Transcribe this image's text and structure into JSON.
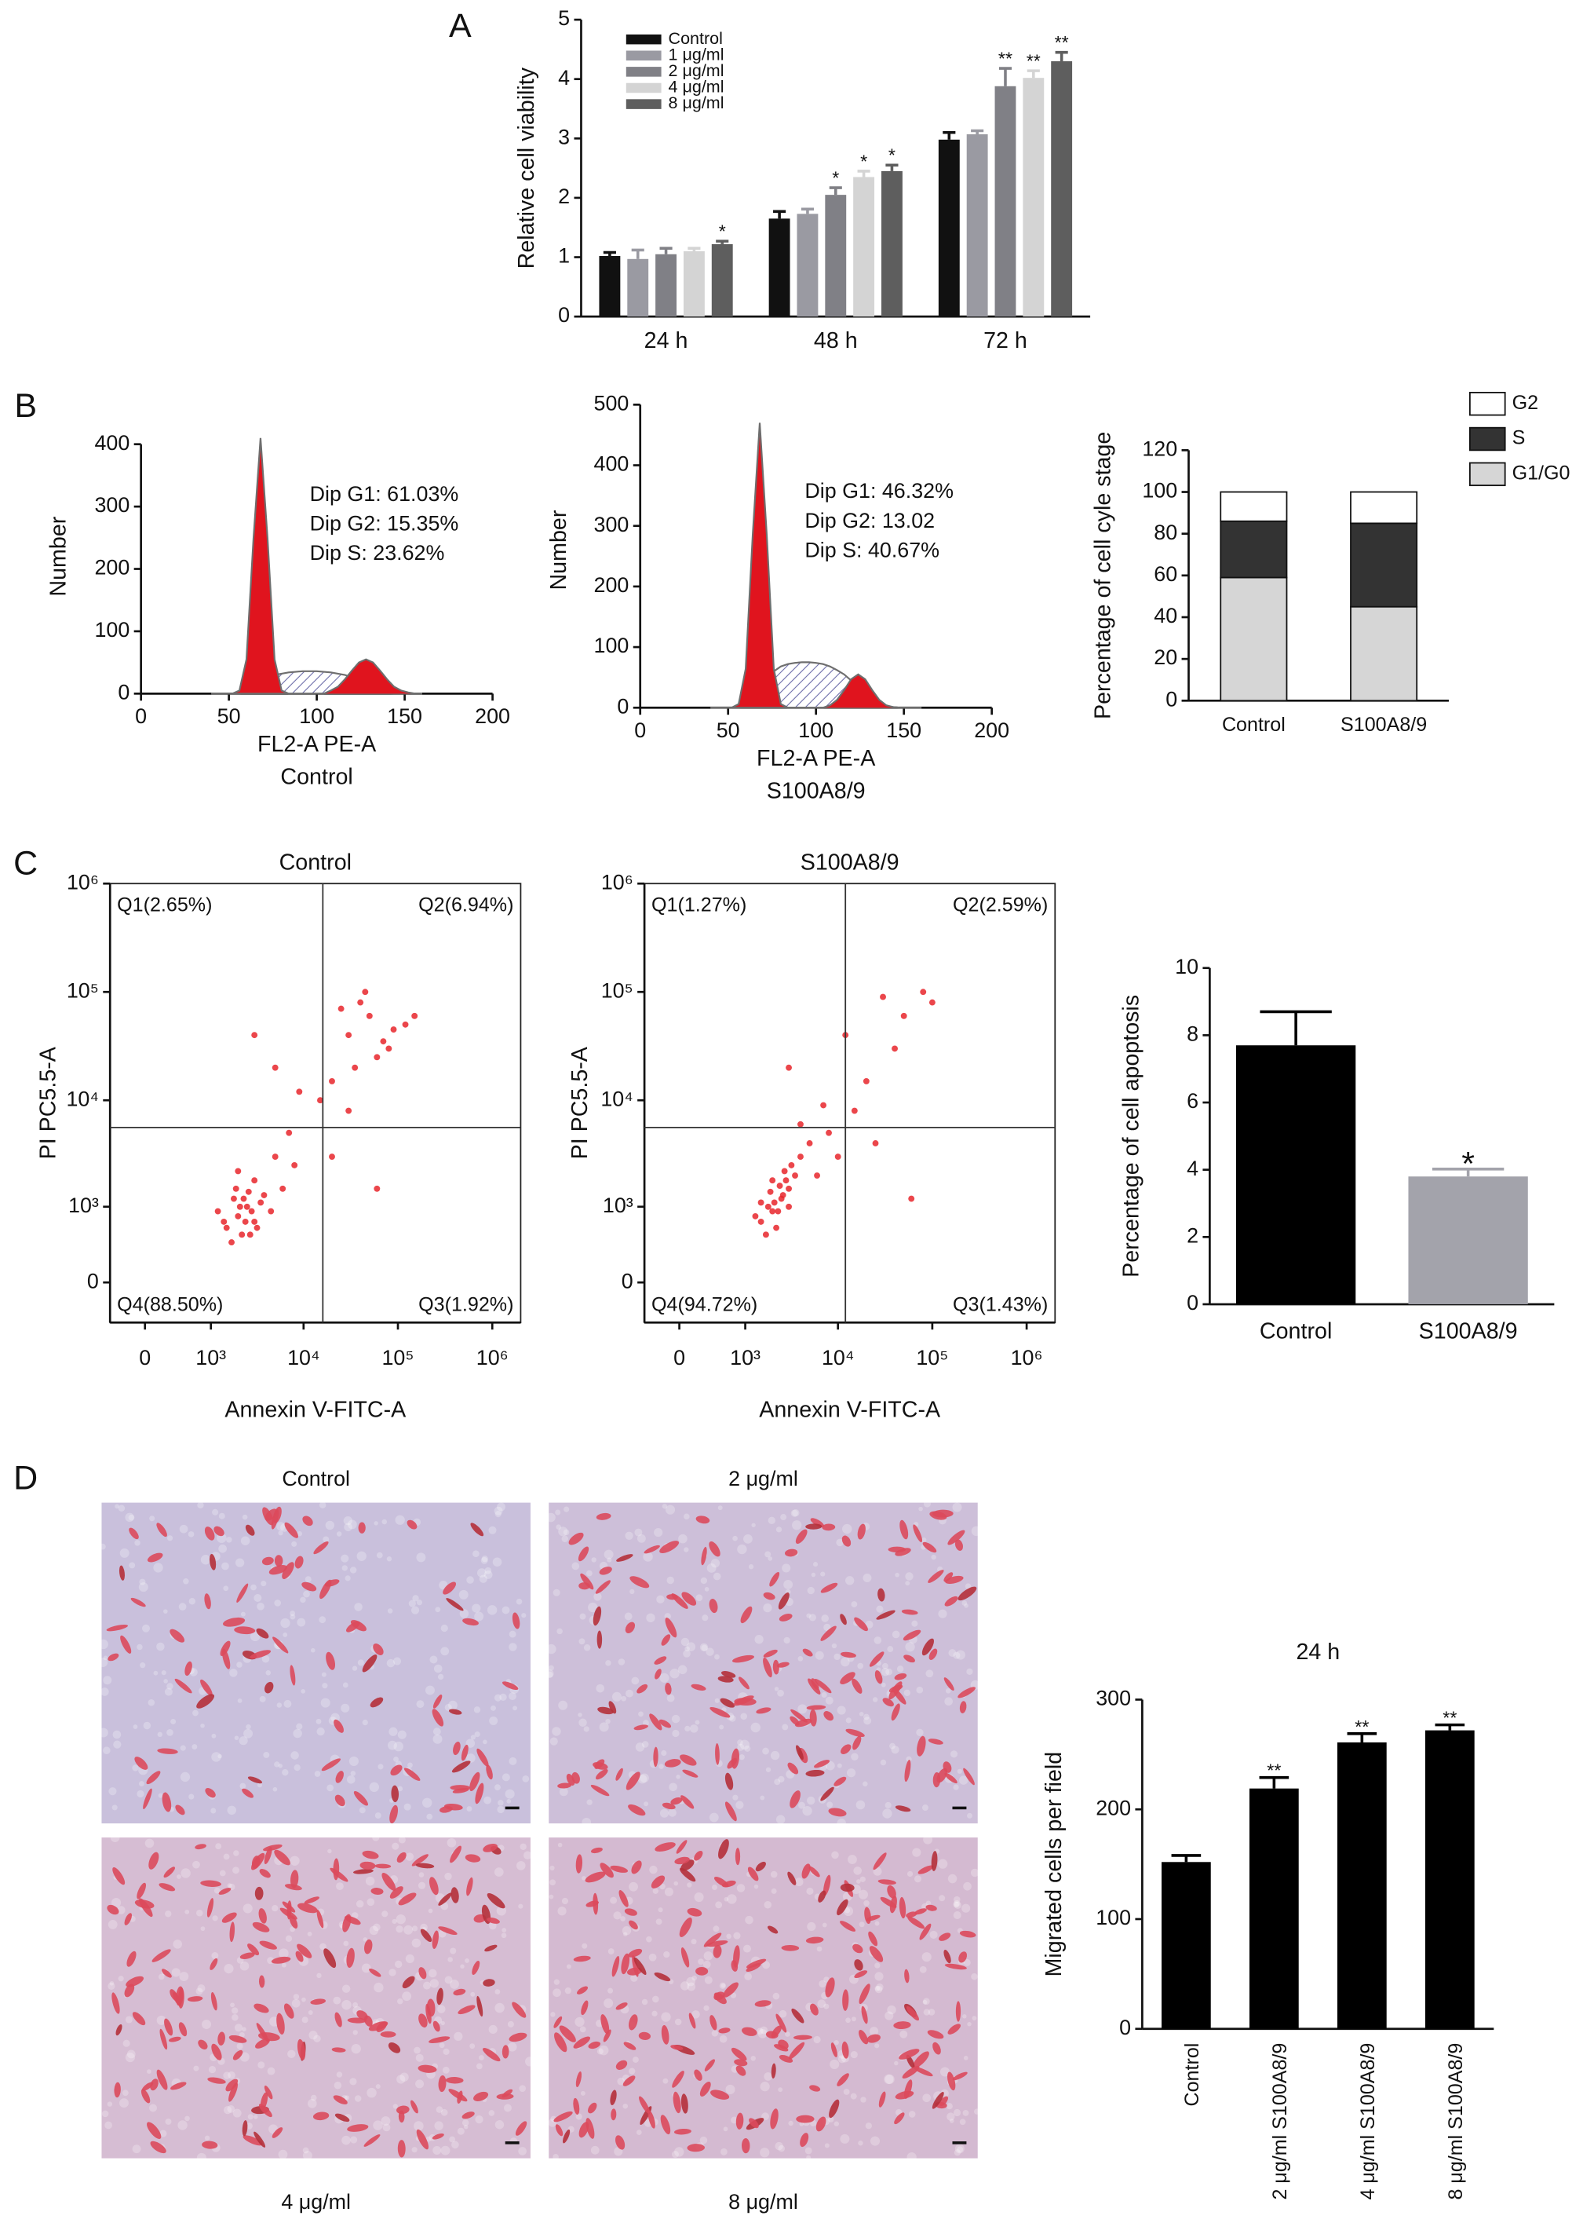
{
  "panel_labels": [
    "A",
    "B",
    "C",
    "D"
  ],
  "images": [
    {
      "label": "Control"
    },
    {
      "label": "2 μg/ml"
    },
    {
      "label": "4 μg/ml"
    },
    {
      "label": "8 μg/ml"
    }
  ],
  "chart_data": [
    {
      "type": "bar",
      "ylabel": "Relative cell viability",
      "categories": [
        "24 h",
        "48 h",
        "72 h"
      ],
      "series": [
        {
          "name": "Control",
          "color": "#111111",
          "values": [
            1.02,
            1.65,
            2.98
          ],
          "errors": [
            0.06,
            0.12,
            0.12
          ]
        },
        {
          "name": "1 μg/ml",
          "color": "#9a9aa2",
          "values": [
            0.97,
            1.73,
            3.07
          ],
          "errors": [
            0.15,
            0.08,
            0.06
          ]
        },
        {
          "name": "2 μg/ml",
          "color": "#808086",
          "values": [
            1.05,
            2.05,
            3.88
          ],
          "errors": [
            0.1,
            0.12,
            0.3
          ],
          "significance": [
            null,
            "*",
            "**"
          ]
        },
        {
          "name": "4 μg/ml",
          "color": "#d4d4d4",
          "values": [
            1.1,
            2.35,
            4.02
          ],
          "errors": [
            0.05,
            0.1,
            0.12
          ],
          "significance": [
            null,
            "*",
            "**"
          ]
        },
        {
          "name": "8 μg/ml",
          "color": "#5e5e5e",
          "values": [
            1.22,
            2.45,
            4.3
          ],
          "errors": [
            0.05,
            0.1,
            0.15
          ],
          "significance": [
            "*",
            "*",
            "**"
          ]
        }
      ],
      "ylim": [
        0,
        5
      ],
      "yticks": [
        0,
        1,
        2,
        3,
        4,
        5
      ],
      "legend": "upper left"
    },
    {
      "type": "area",
      "xlabel": "FL2-A PE-A",
      "caption": "Control",
      "ylabel": "Number",
      "x": [
        40,
        44,
        48,
        52,
        56,
        60,
        64,
        68,
        72,
        76,
        80,
        84,
        88,
        92,
        96,
        100,
        104,
        108,
        112,
        116,
        120,
        124,
        128,
        132,
        136,
        140,
        144,
        148,
        152,
        156,
        160
      ],
      "series": [
        {
          "color": "#6a6aa8",
          "pattern": "hatch",
          "values": [
            0,
            0,
            0,
            0,
            0,
            2,
            5,
            15,
            25,
            30,
            32,
            34,
            35,
            36,
            36,
            36,
            35,
            34,
            32,
            30,
            26,
            20,
            14,
            8,
            4,
            1,
            0,
            0,
            0,
            0,
            0
          ]
        },
        {
          "color": "#e0141e",
          "values": [
            0,
            0,
            0,
            0,
            5,
            55,
            249,
            410,
            249,
            55,
            5,
            0,
            0,
            0,
            0,
            0,
            0,
            0,
            0,
            0,
            0,
            0,
            0,
            0,
            0,
            0,
            0,
            0,
            0,
            0,
            0
          ]
        },
        {
          "color": "#e0141e",
          "values": [
            0,
            0,
            0,
            0,
            0,
            0,
            0,
            0,
            0,
            0,
            0,
            0,
            0,
            0,
            0,
            0,
            0,
            5,
            11,
            23,
            37,
            50,
            55,
            50,
            37,
            23,
            11,
            5,
            2,
            0,
            0
          ]
        }
      ],
      "annotations": [
        "Dip G1: 61.03%",
        "Dip G2: 15.35%",
        "Dip S: 23.62%"
      ],
      "xlim": [
        0,
        200
      ],
      "xticks": [
        0,
        50,
        100,
        150,
        200
      ],
      "ylim": [
        0,
        440
      ],
      "yticks": [
        0,
        100,
        200,
        300,
        400
      ]
    },
    {
      "type": "area",
      "xlabel": "FL2-A PE-A",
      "caption": "S100A8/9",
      "ylabel": "Number",
      "x": [
        40,
        44,
        48,
        52,
        56,
        60,
        64,
        68,
        72,
        76,
        80,
        84,
        88,
        92,
        96,
        100,
        104,
        108,
        112,
        116,
        120,
        124,
        128,
        132,
        136,
        140,
        144,
        148,
        152,
        156,
        160
      ],
      "series": [
        {
          "color": "#6a6aa8",
          "pattern": "hatch",
          "values": [
            0,
            0,
            0,
            0,
            0,
            2,
            8,
            25,
            45,
            60,
            68,
            72,
            74,
            75,
            75,
            74,
            72,
            68,
            62,
            55,
            45,
            35,
            24,
            14,
            7,
            3,
            1,
            0,
            0,
            0,
            0
          ]
        },
        {
          "color": "#e0141e",
          "values": [
            0,
            0,
            0,
            0,
            6,
            64,
            285,
            470,
            285,
            64,
            6,
            0,
            0,
            0,
            0,
            0,
            0,
            0,
            0,
            0,
            0,
            0,
            0,
            0,
            0,
            0,
            0,
            0,
            0,
            0,
            0
          ]
        },
        {
          "color": "#e0141e",
          "values": [
            0,
            0,
            0,
            0,
            0,
            0,
            0,
            0,
            0,
            0,
            0,
            0,
            0,
            0,
            0,
            0,
            0,
            4,
            13,
            29,
            47,
            55,
            47,
            29,
            13,
            4,
            1,
            0,
            0,
            0,
            0
          ]
        }
      ],
      "annotations": [
        "Dip G1: 46.32%",
        "Dip G2: 13.02",
        "Dip S: 40.67%"
      ],
      "xlim": [
        0,
        200
      ],
      "xticks": [
        0,
        50,
        100,
        150,
        200
      ],
      "ylim": [
        0,
        520
      ],
      "yticks": [
        0,
        100,
        200,
        300,
        400,
        500
      ]
    },
    {
      "type": "stacked_bar",
      "ylabel": "Percentage of cell cyle stage",
      "categories": [
        "Control",
        "S100A8/9"
      ],
      "series": [
        {
          "name": "G1/G0",
          "color": "#d6d6d6",
          "values": [
            59,
            45
          ]
        },
        {
          "name": "S",
          "color": "#333333",
          "values": [
            27,
            40
          ]
        },
        {
          "name": "G2",
          "color": "#ffffff",
          "values": [
            14,
            15
          ]
        }
      ],
      "ylim": [
        0,
        120
      ],
      "yticks": [
        0,
        20,
        40,
        60,
        80,
        100,
        120
      ],
      "legend": "right"
    },
    {
      "type": "scatter",
      "title": "Control",
      "xlabel": "Annexin V-FITC-A",
      "ylabel": "PI PC5.5-A",
      "color": "#e8262b",
      "x": [
        1500,
        2000,
        2500,
        3000,
        1800,
        2200,
        2800,
        3500,
        1200,
        2600,
        3200,
        2100,
        1700,
        2400,
        3800,
        1900,
        2300,
        2700,
        1400,
        3000,
        4500,
        6000,
        8000,
        5000,
        2000,
        30000,
        50000,
        80000,
        40000,
        120000,
        60000,
        25000,
        90000,
        35000,
        150000,
        20000,
        45000,
        70000,
        15000,
        30000,
        9000,
        7000,
        20000,
        60000,
        5000,
        3000
      ],
      "y": [
        600,
        800,
        1000,
        700,
        1200,
        500,
        900,
        1100,
        900,
        1400,
        600,
        1000,
        400,
        700,
        1300,
        1500,
        1200,
        500,
        700,
        1800,
        900,
        1500,
        2500,
        3000,
        2200,
        40000,
        60000,
        30000,
        80000,
        50000,
        25000,
        70000,
        45000,
        20000,
        60000,
        15000,
        100000,
        35000,
        10000,
        8000,
        12000,
        5000,
        3000,
        1500,
        20000,
        40000
      ],
      "xscale": "biex",
      "yscale": "biex",
      "xlim": [
        -400,
        2000000
      ],
      "ylim": [
        -400,
        1000000
      ],
      "xticks": [
        0,
        {
          "value": 1000,
          "label": "10³"
        },
        {
          "value": 10000,
          "label": "10⁴"
        },
        {
          "value": 100000,
          "label": "10⁵"
        },
        {
          "value": 1000000,
          "label": "10⁶"
        }
      ],
      "yticks": [
        0,
        {
          "value": 1000,
          "label": "10³"
        },
        {
          "value": 10000,
          "label": "10⁴"
        },
        {
          "value": 100000,
          "label": "10⁵"
        },
        {
          "value": 1000000,
          "label": "10⁶"
        }
      ],
      "gate": [
        16000,
        5600
      ],
      "quadrants": [
        "Q1(2.65%)",
        "Q2(6.94%)",
        "Q4(88.50%)",
        "Q3(1.92%)"
      ]
    },
    {
      "type": "scatter",
      "title": "S100A8/9",
      "xlabel": "Annexin V-FITC-A",
      "ylabel": "PI PC5.5-A",
      "color": "#e8262b",
      "x": [
        1500,
        2000,
        2500,
        3000,
        1800,
        2200,
        2800,
        3500,
        1300,
        2600,
        3200,
        2100,
        1700,
        2400,
        4000,
        1900,
        2300,
        2700,
        1500,
        3000,
        5000,
        6000,
        8000,
        4000,
        2000,
        30000,
        50000,
        80000,
        40000,
        100000,
        20000,
        15000,
        10000,
        25000,
        60000,
        7000,
        3000,
        12000
      ],
      "y": [
        700,
        900,
        1200,
        1500,
        1000,
        600,
        1800,
        2000,
        800,
        1300,
        2500,
        1100,
        500,
        1600,
        3000,
        1400,
        900,
        2200,
        1100,
        1000,
        4000,
        2000,
        5000,
        6000,
        1800,
        90000,
        60000,
        100000,
        30000,
        80000,
        15000,
        8000,
        3000,
        4000,
        1200,
        9000,
        20000,
        40000
      ],
      "xscale": "biex",
      "yscale": "biex",
      "xlim": [
        -400,
        2000000
      ],
      "ylim": [
        -400,
        1000000
      ],
      "xticks": [
        0,
        {
          "value": 1000,
          "label": "10³"
        },
        {
          "value": 10000,
          "label": "10⁴"
        },
        {
          "value": 100000,
          "label": "10⁵"
        },
        {
          "value": 1000000,
          "label": "10⁶"
        }
      ],
      "yticks": [
        0,
        {
          "value": 1000,
          "label": "10³"
        },
        {
          "value": 10000,
          "label": "10⁴"
        },
        {
          "value": 100000,
          "label": "10⁵"
        },
        {
          "value": 1000000,
          "label": "10⁶"
        }
      ],
      "gate": [
        12000,
        5600
      ],
      "quadrants": [
        "Q1(1.27%)",
        "Q2(2.59%)",
        "Q4(94.72%)",
        "Q3(1.43%)"
      ]
    },
    {
      "type": "bar",
      "ylabel": "Percentage of cell apoptosis",
      "categories": [
        "Control",
        "S100A8/9"
      ],
      "values": [
        7.7,
        3.8
      ],
      "errors": [
        1.0,
        0.22
      ],
      "significance": [
        null,
        "*"
      ],
      "colors": [
        "#000000",
        "#a3a3ab"
      ],
      "ylim": [
        0,
        10
      ],
      "yticks": [
        0,
        2,
        4,
        6,
        8,
        10
      ]
    },
    {
      "type": "bar",
      "title": "24 h",
      "ylabel": "Migrated cells per field",
      "categories": [
        "Control",
        "2 μg/ml S100A8/9",
        "4 μg/ml S100A8/9",
        "8 μg/ml S100A8/9"
      ],
      "values": [
        152,
        219,
        261,
        272
      ],
      "errors": [
        6,
        10,
        8,
        5
      ],
      "significance": [
        null,
        "**",
        "**",
        "**"
      ],
      "color": "#000000",
      "ylim": [
        0,
        300
      ],
      "yticks": [
        0,
        100,
        200,
        300
      ]
    }
  ]
}
